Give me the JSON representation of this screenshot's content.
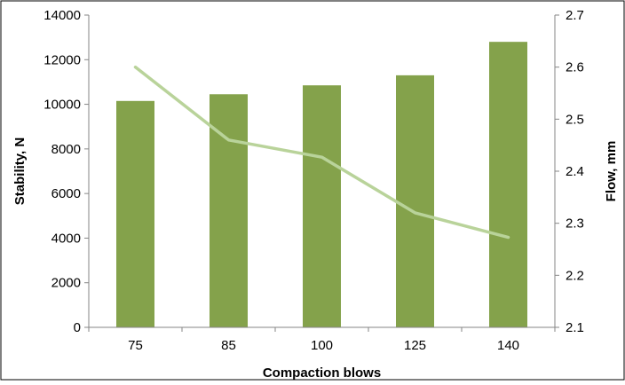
{
  "chart_data": {
    "type": "bar",
    "categories": [
      "75",
      "85",
      "100",
      "125",
      "140"
    ],
    "xlabel": "Compaction blows",
    "grid": false,
    "series": [
      {
        "type": "bar",
        "axis": "left",
        "values": [
          10150,
          10450,
          10850,
          11300,
          12800
        ],
        "color": "#84a24b"
      },
      {
        "type": "line",
        "axis": "right",
        "values": [
          2.6,
          2.46,
          2.427,
          2.32,
          2.273
        ],
        "color": "#b9d39a"
      }
    ],
    "y_left": {
      "label": "Stability, N",
      "ylim": [
        0,
        14000
      ],
      "ticks": [
        0,
        2000,
        4000,
        6000,
        8000,
        10000,
        12000,
        14000
      ]
    },
    "y_right": {
      "label": "Flow, mm",
      "ylim": [
        2.1,
        2.7
      ],
      "ticks": [
        "2.1",
        "2.2",
        "2.3",
        "2.4",
        "2.5",
        "2.6",
        "2.7"
      ]
    }
  }
}
